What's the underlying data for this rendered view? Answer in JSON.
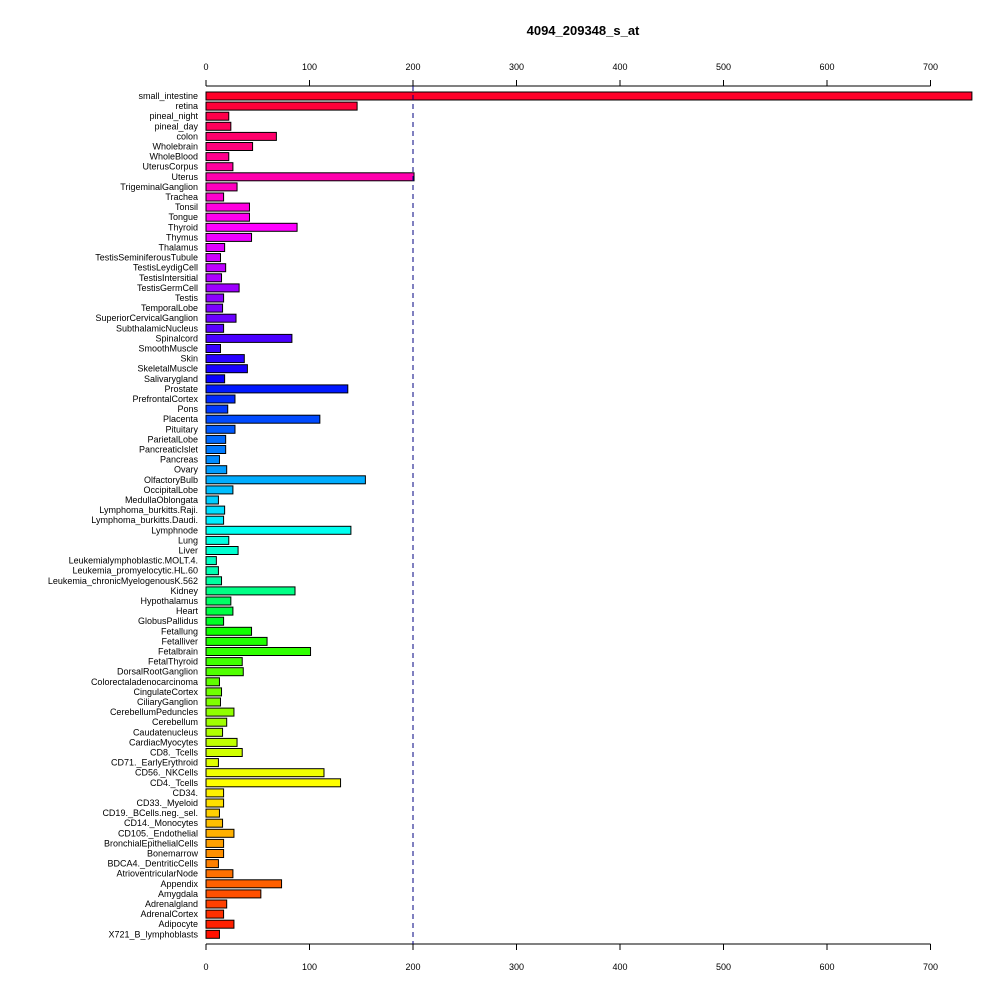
{
  "chart_data": {
    "type": "bar",
    "orientation": "horizontal",
    "title": "4094_209348_s_at",
    "xlabel": "",
    "ylabel": "",
    "xlim": [
      0,
      740
    ],
    "x_ticks": [
      0,
      100,
      200,
      300,
      400,
      500,
      600,
      700
    ],
    "reference_line": 200,
    "grid": false,
    "categories": [
      "small_intestine",
      "retina",
      "pineal_night",
      "pineal_day",
      "colon",
      "Wholebrain",
      "WholeBlood",
      "UterusCorpus",
      "Uterus",
      "TrigeminalGanglion",
      "Trachea",
      "Tonsil",
      "Tongue",
      "Thyroid",
      "Thymus",
      "Thalamus",
      "TestisSeminiferousTubule",
      "TestisLeydigCell",
      "TestisIntersitial",
      "TestisGermCell",
      "Testis",
      "TemporalLobe",
      "SuperiorCervicalGanglion",
      "SubthalamicNucleus",
      "Spinalcord",
      "SmoothMuscle",
      "Skin",
      "SkeletalMuscle",
      "Salivarygland",
      "Prostate",
      "PrefrontalCortex",
      "Pons",
      "Placenta",
      "Pituitary",
      "ParietalLobe",
      "PancreaticIslet",
      "Pancreas",
      "Ovary",
      "OlfactoryBulb",
      "OccipitalLobe",
      "MedullaOblongata",
      "Lymphoma_burkitts.Raji.",
      "Lymphoma_burkitts.Daudi.",
      "Lymphnode",
      "Lung",
      "Liver",
      "Leukemialymphoblastic.MOLT.4.",
      "Leukemia_promyelocytic.HL.60",
      "Leukemia_chronicMyelogenousK.562",
      "Kidney",
      "Hypothalamus",
      "Heart",
      "GlobusPallidus",
      "Fetallung",
      "Fetalliver",
      "Fetalbrain",
      "FetalThyroid",
      "DorsalRootGanglion",
      "Colorectaladenocarcinoma",
      "CingulateCortex",
      "CiliaryGanglion",
      "CerebellumPeduncles",
      "Cerebellum",
      "Caudatenucleus",
      "CardiacMyocytes",
      "CD8._Tcells",
      "CD71._EarlyErythroid",
      "CD56._NKCells",
      "CD4._Tcells",
      "CD34.",
      "CD33._Myeloid",
      "CD19._BCells.neg._sel.",
      "CD14._Monocytes",
      "CD105._Endothelial",
      "BronchialEpithelialCells",
      "Bonemarrow",
      "BDCA4._DentriticCells",
      "AtrioventricularNode",
      "Appendix",
      "Amygdala",
      "Adrenalgland",
      "AdrenalCortex",
      "Adipocyte",
      "X721_B_lymphoblasts"
    ],
    "values": [
      740,
      146,
      22,
      24,
      68,
      45,
      22,
      26,
      201,
      30,
      17,
      42,
      42,
      88,
      44,
      18,
      14,
      19,
      15,
      32,
      17,
      16,
      29,
      17,
      83,
      14,
      37,
      40,
      18,
      137,
      28,
      21,
      110,
      28,
      19,
      19,
      13,
      20,
      154,
      26,
      12,
      18,
      17,
      140,
      22,
      31,
      10,
      12,
      15,
      86,
      24,
      26,
      17,
      44,
      59,
      101,
      35,
      36,
      13,
      15,
      14,
      27,
      20,
      16,
      30,
      35,
      12,
      114,
      130,
      17,
      17,
      13,
      16,
      27,
      17,
      17,
      12,
      26,
      73,
      53,
      20,
      17,
      27,
      13
    ],
    "bar_colors": [
      "#FF0029",
      "#FF0039",
      "#FF004A",
      "#FF005A",
      "#FF006B",
      "#FF007B",
      "#FF008C",
      "#FF009D",
      "#FF00AD",
      "#FF00BE",
      "#FF00CE",
      "#FF00DF",
      "#FF00EF",
      "#FF00FF",
      "#EF00FF",
      "#DF00FF",
      "#CE00FF",
      "#BE00FF",
      "#AD00FF",
      "#9D00FF",
      "#8C00FF",
      "#7B00FF",
      "#6B00FF",
      "#5A00FF",
      "#4A00FF",
      "#3900FF",
      "#2900FF",
      "#1800FF",
      "#0800FF",
      "#0018FF",
      "#0029FF",
      "#0039FF",
      "#004AFF",
      "#005AFF",
      "#006BFF",
      "#007BFF",
      "#008CFF",
      "#009DFF",
      "#00ADFF",
      "#00BEFF",
      "#00CEFF",
      "#00DFFF",
      "#00EFFF",
      "#00FFF0",
      "#00FFE0",
      "#00FFD0",
      "#00FFC0",
      "#00FFB0",
      "#00FFA0",
      "#00FF85",
      "#00FF65",
      "#00FF45",
      "#00FF25",
      "#10FF00",
      "#20FF00",
      "#30FF00",
      "#40FF00",
      "#50FF00",
      "#60FF00",
      "#70FF00",
      "#80FF00",
      "#90FF00",
      "#A0FF00",
      "#B0FF00",
      "#C0FF00",
      "#D0FF00",
      "#E0FF00",
      "#F0FF00",
      "#FFFF00",
      "#FFF000",
      "#FFE000",
      "#FFD000",
      "#FFC000",
      "#FFB000",
      "#FFA000",
      "#FF9000",
      "#FF8000",
      "#FF7000",
      "#FF6000",
      "#FF5000",
      "#FF4000",
      "#FF3000",
      "#FF2000",
      "#FF1000"
    ]
  }
}
